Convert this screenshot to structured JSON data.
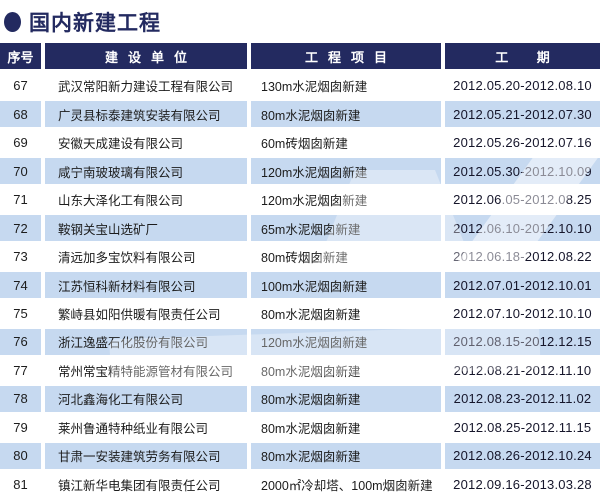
{
  "title": "国内新建工程",
  "table": {
    "headers": [
      "序号",
      "建设单位",
      "工程项目",
      "工期"
    ],
    "rows": [
      {
        "no": "67",
        "company": "武汉常阳新力建设工程有限公司",
        "project": "130m水泥烟囱新建",
        "period": "2012.05.20-2012.08.10"
      },
      {
        "no": "68",
        "company": "广灵县标泰建筑安装有限公司",
        "project": "80m水泥烟囱新建",
        "period": "2012.05.21-2012.07.30"
      },
      {
        "no": "69",
        "company": "安徽天成建设有限公司",
        "project": "60m砖烟囱新建",
        "period": "2012.05.26-2012.07.16"
      },
      {
        "no": "70",
        "company": "咸宁南玻玻璃有限公司",
        "project": "120m水泥烟囱新建",
        "period": "2012.05.30-2012.10.09"
      },
      {
        "no": "71",
        "company": "山东大泽化工有限公司",
        "project": "120m水泥烟囱新建",
        "period": "2012.06.05-2012.08.25"
      },
      {
        "no": "72",
        "company": "鞍钢关宝山选矿厂",
        "project": "65m水泥烟囱新建",
        "period": "2012.06.10-2012.10.10"
      },
      {
        "no": "73",
        "company": "清远加多宝饮料有限公司",
        "project": "80m砖烟囱新建",
        "period": "2012.06.18-2012.08.22"
      },
      {
        "no": "74",
        "company": "江苏恒科新材料有限公司",
        "project": "100m水泥烟囱新建",
        "period": "2012.07.01-2012.10.01"
      },
      {
        "no": "75",
        "company": "繁峙县如阳供暖有限责任公司",
        "project": "80m水泥烟囱新建",
        "period": "2012.07.10-2012.10.10"
      },
      {
        "no": "76",
        "company": "浙江逸盛石化股份有限公司",
        "project": "120m水泥烟囱新建",
        "period": "2012.08.15-2012.12.15"
      },
      {
        "no": "77",
        "company": "常州常宝精特能源管材有限公司",
        "project": "80m水泥烟囱新建",
        "period": "2012.08.21-2012.11.10"
      },
      {
        "no": "78",
        "company": "河北鑫海化工有限公司",
        "project": "80m水泥烟囱新建",
        "period": "2012.08.23-2012.11.02"
      },
      {
        "no": "79",
        "company": "莱州鲁通特种纸业有限公司",
        "project": "80m水泥烟囱新建",
        "period": "2012.08.25-2012.11.15"
      },
      {
        "no": "80",
        "company": "甘肃一安装建筑劳务有限公司",
        "project": "80m水泥烟囱新建",
        "period": "2012.08.26-2012.10.24"
      },
      {
        "no": "81",
        "company": "镇江新华电集团有限责任公司",
        "project": "2000㎡冷却塔、100m烟囱新建",
        "period": "2012.09.16-2013.03.28"
      }
    ]
  },
  "colors": {
    "navy": "#232a60",
    "row_alt_blue": "#c6d9f0",
    "text": "#1c1c1c",
    "header_text": "#ffffff"
  }
}
